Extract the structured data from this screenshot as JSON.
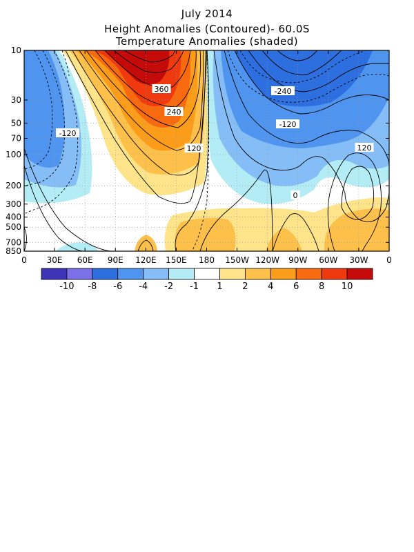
{
  "title": {
    "line1": "July 2014",
    "line2": "Height Anomalies (Contoured)- 60.0S",
    "line3": "Temperature Anomalies (shaded)"
  },
  "chart_data": {
    "type": "heatmap",
    "title": "Height Anomalies (Contoured)- 60.0S / Temperature Anomalies (shaded)",
    "xlabel": "",
    "ylabel": "",
    "x_ticks": [
      "0",
      "30E",
      "60E",
      "90E",
      "120E",
      "150E",
      "180",
      "150W",
      "120W",
      "90W",
      "60W",
      "30W",
      "0"
    ],
    "x_range_deg": [
      0,
      360
    ],
    "y_ticks": [
      "10",
      "30",
      "50",
      "70",
      "100",
      "200",
      "300",
      "400",
      "500",
      "700",
      "850"
    ],
    "y_range_hpa": [
      10,
      850
    ],
    "y_scale": "log",
    "grid": true,
    "height_contour_labels": [
      "360",
      "240",
      "120",
      "-120",
      "-240",
      "-120",
      "120",
      "0"
    ],
    "contour_interval": 40,
    "colorbar": {
      "labels": [
        "-10",
        "-8",
        "-6",
        "-4",
        "-2",
        "-1",
        "1",
        "2",
        "4",
        "6",
        "8",
        "10"
      ],
      "colors": [
        "#3d35b8",
        "#7c70e8",
        "#2e6fe0",
        "#4f95ef",
        "#85bdf6",
        "#b3ecf5",
        "#ffffff",
        "#fde38a",
        "#fdc04a",
        "#fb9c1b",
        "#f76a10",
        "#ef3a10",
        "#c50a0a"
      ]
    },
    "temperature_regions": [
      {
        "level": "+10",
        "lon": [
          90,
          130
        ],
        "p": [
          10,
          30
        ]
      },
      {
        "level": "+8",
        "lon": [
          80,
          145
        ],
        "p": [
          10,
          45
        ]
      },
      {
        "level": "+4",
        "lon": [
          60,
          170
        ],
        "p": [
          10,
          120
        ]
      },
      {
        "level": "-6",
        "lon": [
          200,
          300
        ],
        "p": [
          10,
          50
        ]
      },
      {
        "level": "-4",
        "lon": [
          0,
          60
        ],
        "p": [
          10,
          150
        ]
      },
      {
        "level": "+2",
        "lon": [
          150,
          360
        ],
        "p": [
          350,
          700
        ]
      }
    ]
  },
  "axes": {
    "x_labels": [
      "0",
      "30E",
      "60E",
      "90E",
      "120E",
      "150E",
      "180",
      "150W",
      "120W",
      "90W",
      "60W",
      "30W",
      "0"
    ],
    "y_labels": [
      "10",
      "30",
      "50",
      "70",
      "100",
      "200",
      "300",
      "400",
      "500",
      "700",
      "850"
    ]
  }
}
